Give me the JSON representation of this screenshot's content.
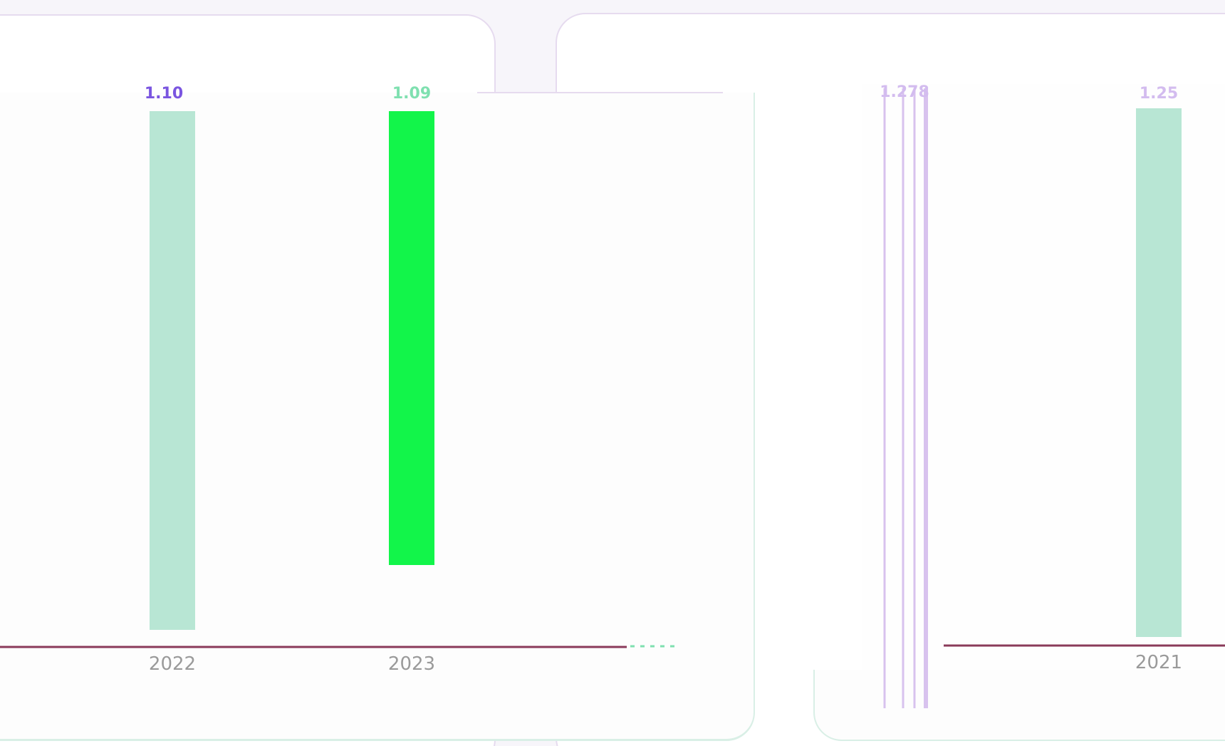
{
  "colors": {
    "background": "#f7f5fa",
    "card_border": "#e6dbef",
    "baseline": "#8a3a5a",
    "bar_mint": "#b8e6d4",
    "bar_green": "#12f54a",
    "lines_purple": "#d8c2ee",
    "tick_text": "#9a9a9a",
    "label_purple": "#7a55e0",
    "label_green": "#7fe0b0",
    "label_light_purple": "#d3bcef"
  },
  "chart_data": [
    {
      "type": "bar",
      "title": "",
      "xlabel": "",
      "ylabel": "",
      "categories": [
        "2022",
        "2023"
      ],
      "values": [
        1.1,
        1.09
      ],
      "value_labels": [
        "1.10",
        "1.09"
      ],
      "bar_colors": [
        "#b8e6d4",
        "#12f54a"
      ],
      "grid": false,
      "legend": "none"
    },
    {
      "type": "bar",
      "title": "",
      "xlabel": "",
      "ylabel": "",
      "categories": [
        "2021"
      ],
      "values": [
        1.25
      ],
      "value_labels": [
        "1.25"
      ],
      "bar_colors": [
        "#b8e6d4"
      ],
      "extra_labels": [
        "1.278"
      ],
      "grid": false,
      "legend": "none"
    }
  ]
}
